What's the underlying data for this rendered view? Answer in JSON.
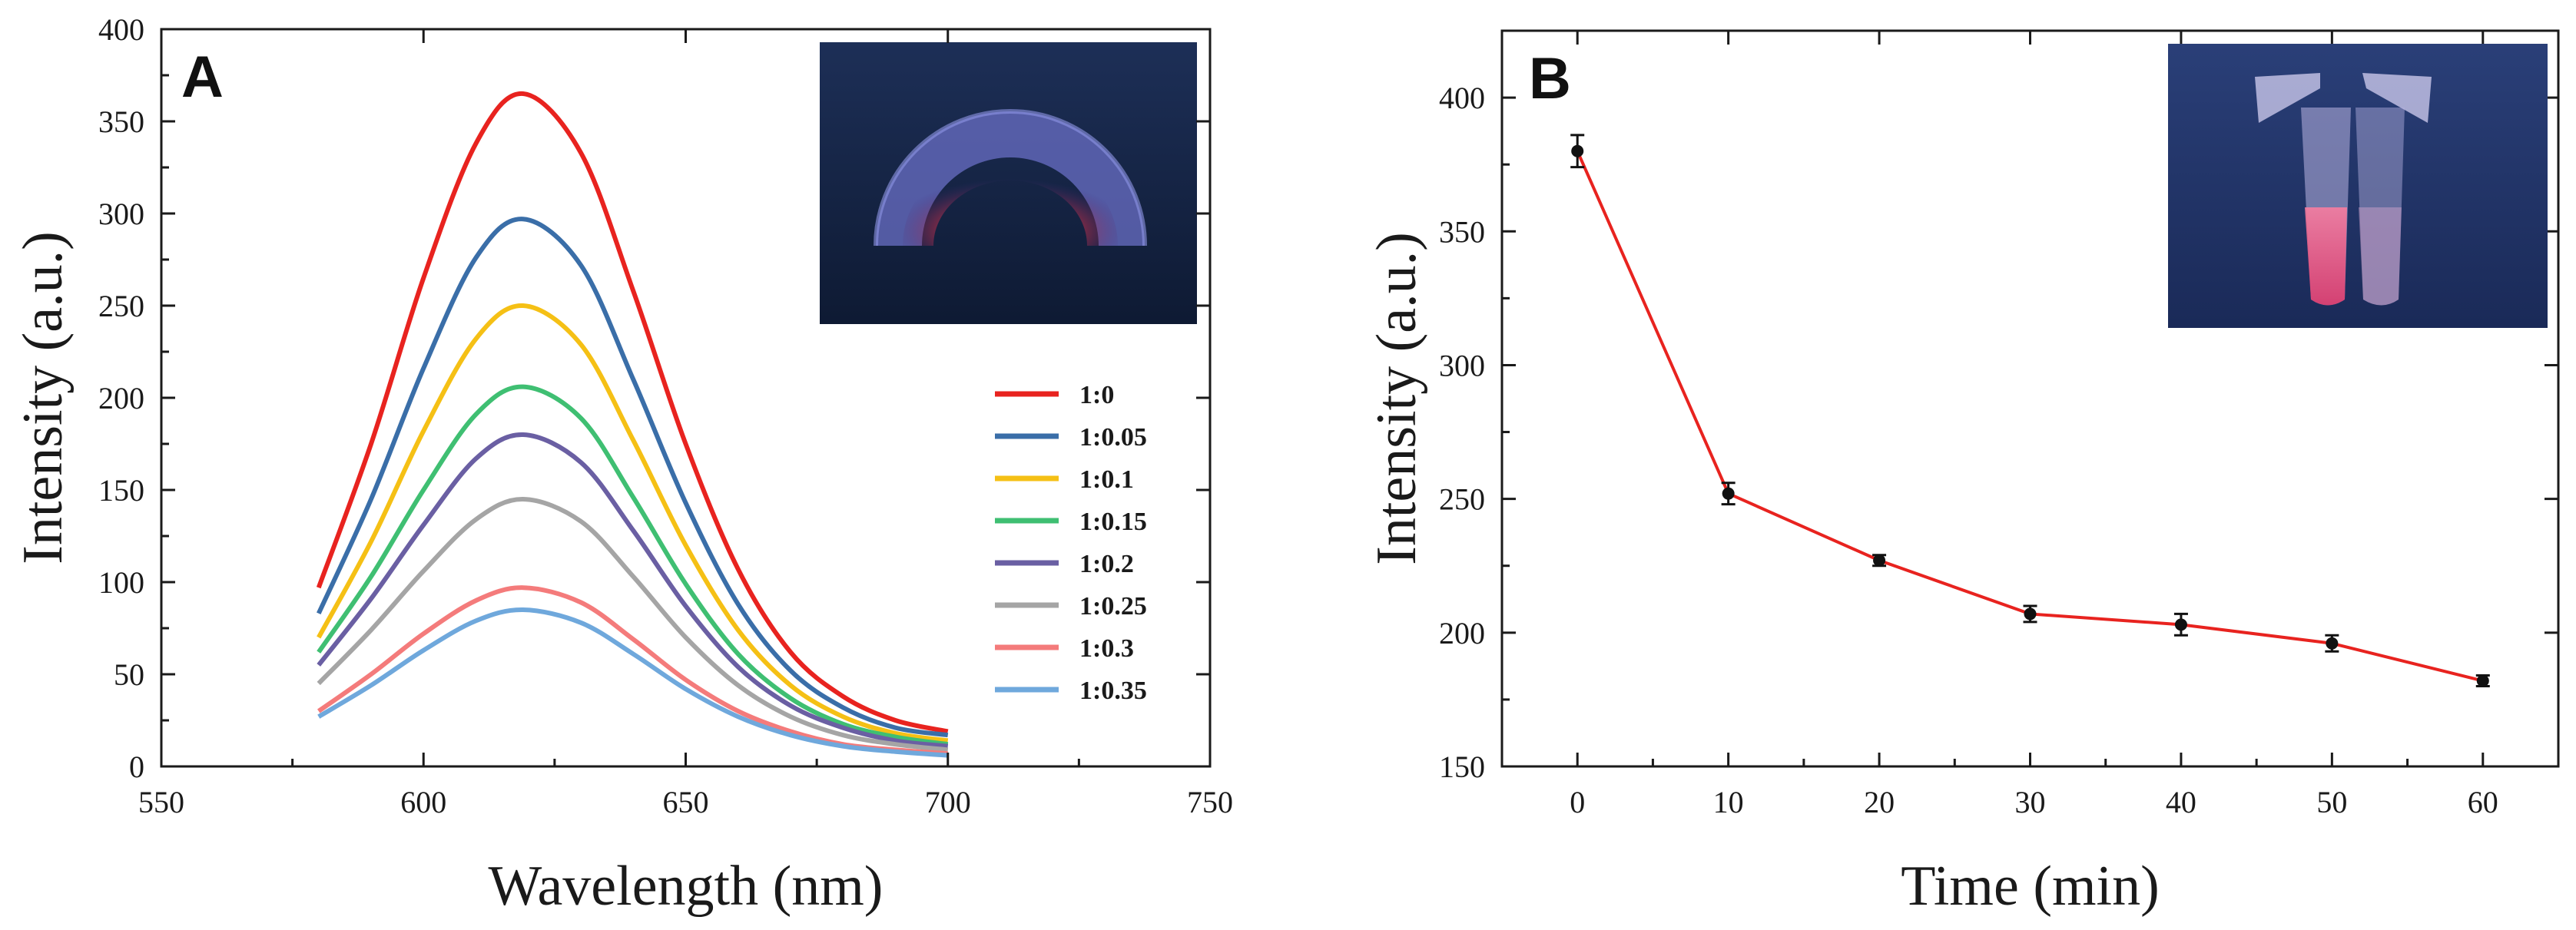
{
  "chart_data": [
    {
      "panel": "A",
      "type": "line",
      "xlabel": "Wavelength (nm)",
      "ylabel": "Intensity (a.u.)",
      "xlim": [
        550,
        750
      ],
      "ylim": [
        0,
        400
      ],
      "xticks": [
        550,
        600,
        650,
        700,
        750
      ],
      "yticks": [
        0,
        50,
        100,
        150,
        200,
        250,
        300,
        350,
        400
      ],
      "x": [
        580,
        590,
        600,
        610,
        619,
        630,
        640,
        650,
        660,
        670,
        680,
        690,
        700
      ],
      "series": [
        {
          "name": "1:0",
          "color": "#e8231f",
          "values": [
            97,
            175,
            265,
            338,
            365,
            333,
            258,
            175,
            107,
            62,
            38,
            25,
            19
          ]
        },
        {
          "name": "1:0.05",
          "color": "#3a6ea8",
          "values": [
            83,
            145,
            216,
            276,
            297,
            272,
            210,
            143,
            88,
            52,
            32,
            21,
            17
          ]
        },
        {
          "name": "1:0.1",
          "color": "#f5c015",
          "values": [
            70,
            122,
            182,
            232,
            250,
            229,
            177,
            120,
            74,
            44,
            27,
            18,
            14
          ]
        },
        {
          "name": "1:0.15",
          "color": "#3fbf72",
          "values": [
            62,
            103,
            150,
            191,
            206,
            189,
            146,
            99,
            61,
            37,
            23,
            16,
            12
          ]
        },
        {
          "name": "1:0.2",
          "color": "#6a5fa3",
          "values": [
            55,
            91,
            131,
            167,
            180,
            165,
            128,
            87,
            54,
            33,
            21,
            14,
            11
          ]
        },
        {
          "name": "1:0.25",
          "color": "#a5a5a5",
          "values": [
            45,
            74,
            106,
            134,
            145,
            133,
            103,
            70,
            44,
            27,
            17,
            12,
            9
          ]
        },
        {
          "name": "1:0.3",
          "color": "#f47b7b",
          "values": [
            30,
            50,
            72,
            90,
            97,
            89,
            69,
            47,
            30,
            19,
            12,
            9,
            7
          ]
        },
        {
          "name": "1:0.35",
          "color": "#6fa8dc",
          "values": [
            27,
            44,
            63,
            79,
            85,
            78,
            61,
            42,
            27,
            17,
            11,
            8,
            6
          ]
        }
      ],
      "inset": "photo of fluorescent tubes under UV light"
    },
    {
      "panel": "B",
      "type": "line",
      "xlabel": "Time (min)",
      "ylabel": "Intensity (a.u.)",
      "xlim": [
        -5,
        65
      ],
      "ylim": [
        150,
        425
      ],
      "xticks": [
        0,
        10,
        20,
        30,
        40,
        50,
        60
      ],
      "yticks": [
        150,
        200,
        250,
        300,
        350,
        400
      ],
      "series": [
        {
          "name": "Intensity",
          "color": "#e8231f",
          "marker_color": "#111111",
          "x": [
            0,
            10,
            20,
            30,
            40,
            50,
            60
          ],
          "values": [
            380,
            252,
            227,
            207,
            203,
            196,
            182
          ],
          "errors": [
            6,
            4,
            2,
            3,
            4,
            3,
            2
          ]
        }
      ],
      "inset": "photo of two tubes under UV light"
    }
  ]
}
